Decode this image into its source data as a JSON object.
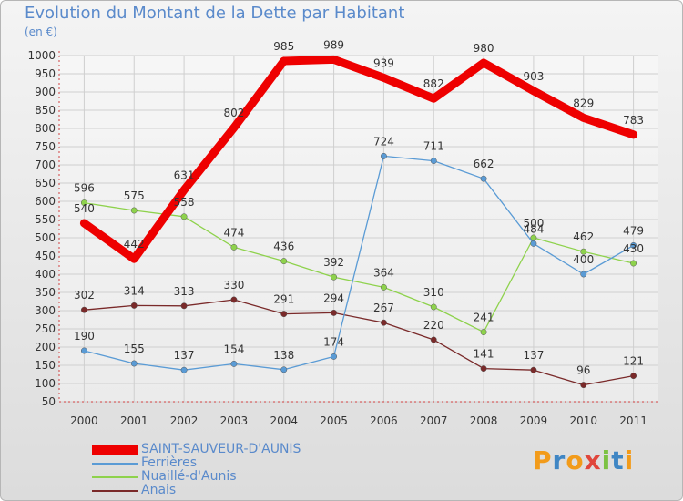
{
  "title": "Evolution du Montant de la Dette par Habitant",
  "subtitle": "(en €)",
  "brand": {
    "letters": [
      "P",
      "r",
      "o",
      "x",
      "i",
      "t",
      "i"
    ],
    "colors": [
      "#f29b1a",
      "#3f86c4",
      "#f29b1a",
      "#e0463c",
      "#7cc242",
      "#3f86c4",
      "#f29b1a"
    ]
  },
  "chart_data": {
    "type": "line",
    "categories": [
      "2000",
      "2001",
      "2002",
      "2003",
      "2004",
      "2005",
      "2006",
      "2007",
      "2008",
      "2009",
      "2010",
      "2011"
    ],
    "ylim": [
      50,
      1000
    ],
    "yticks": [
      "50",
      "100",
      "150",
      "200",
      "250",
      "300",
      "350",
      "400",
      "450",
      "500",
      "550",
      "600",
      "650",
      "700",
      "750",
      "800",
      "850",
      "900",
      "950",
      "1000"
    ],
    "grid": true,
    "legend_placement": "bottom-left",
    "series": [
      {
        "name": "SAINT-SAUVEUR-D'AUNIS",
        "color": "#ee0000",
        "values": [
          540,
          442,
          631,
          802,
          985,
          989,
          939,
          882,
          980,
          903,
          829,
          783
        ],
        "labels": [
          "540",
          "442",
          "631",
          "802",
          "985",
          "989",
          "939",
          "882",
          "980",
          "903",
          "829",
          "783"
        ]
      },
      {
        "name": "Ferrières",
        "color": "#5a9bd5",
        "values": [
          190,
          155,
          137,
          154,
          138,
          174,
          724,
          711,
          662,
          484,
          400,
          479
        ],
        "labels": [
          "190",
          "155",
          "137",
          "154",
          "138",
          "174",
          "724",
          "711",
          "662",
          "484",
          "400",
          "479"
        ]
      },
      {
        "name": "Nuaillé-d'Aunis",
        "color": "#8ed24c",
        "values": [
          596,
          575,
          558,
          474,
          436,
          392,
          364,
          310,
          241,
          500,
          462,
          430
        ],
        "labels": [
          "596",
          "575",
          "558",
          "474",
          "436",
          "392",
          "364",
          "310",
          "241",
          "500",
          "462",
          "430"
        ]
      },
      {
        "name": "Anais",
        "color": "#7a2a2a",
        "values": [
          302,
          314,
          313,
          330,
          291,
          294,
          267,
          220,
          141,
          137,
          96,
          121
        ],
        "labels": [
          "302",
          "314",
          "313",
          "330",
          "291",
          "294",
          "267",
          "220",
          "141",
          "137",
          "96",
          "121"
        ]
      }
    ]
  }
}
